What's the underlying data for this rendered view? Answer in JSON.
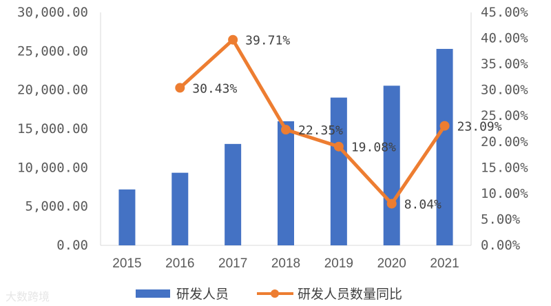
{
  "chart_data": {
    "type": "bar+line",
    "title": "",
    "categories": [
      "2015",
      "2016",
      "2017",
      "2018",
      "2019",
      "2020",
      "2021"
    ],
    "series": [
      {
        "name": "研发人员",
        "type": "bar",
        "axis": "left",
        "color": "#4472C4",
        "values": [
          7200,
          9350,
          13060,
          15980,
          19030,
          20560,
          25300
        ]
      },
      {
        "name": "研发人员数量同比",
        "type": "line",
        "axis": "right",
        "color": "#ED7D31",
        "values": [
          null,
          30.43,
          39.71,
          22.35,
          19.08,
          8.04,
          23.09
        ],
        "labels": [
          "",
          "30.43%",
          "39.71%",
          "22.35%",
          "19.08%",
          "8.04%",
          "23.09%"
        ]
      }
    ],
    "ylim_left": [
      0,
      30000
    ],
    "yticks_left": [
      0,
      5000,
      10000,
      15000,
      20000,
      25000,
      30000
    ],
    "ytick_labels_left": [
      "0.00",
      "5,000.00",
      "10,000.00",
      "15,000.00",
      "20,000.00",
      "25,000.00",
      "30,000.00"
    ],
    "ylim_right": [
      0,
      45
    ],
    "yticks_right": [
      0,
      5,
      10,
      15,
      20,
      25,
      30,
      35,
      40,
      45
    ],
    "ytick_labels_right": [
      "0.00%",
      "5.00%",
      "10.00%",
      "15.00%",
      "20.00%",
      "25.00%",
      "30.00%",
      "35.00%",
      "40.00%",
      "45.00%"
    ],
    "grid": false,
    "legend_position": "bottom"
  },
  "legend": {
    "bar_label": "研发人员",
    "line_label": "研发人员数量同比"
  },
  "watermark": {
    "text": "大数跨境"
  }
}
